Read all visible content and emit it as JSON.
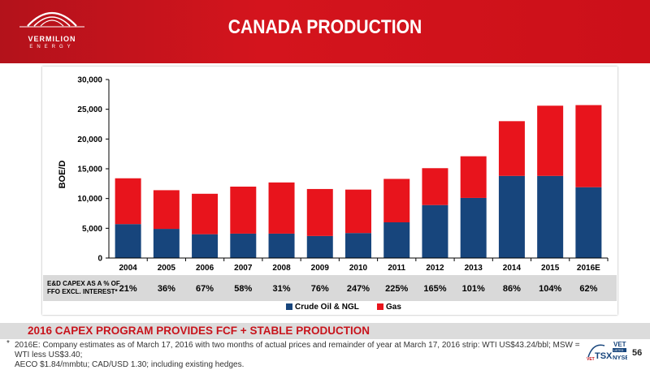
{
  "header": {
    "logo_name": "VERMILION",
    "logo_sub": "ENERGY",
    "title": "CANADA PRODUCTION"
  },
  "chart_data": {
    "type": "bar",
    "stacked": true,
    "categories": [
      "2004",
      "2005",
      "2006",
      "2007",
      "2008",
      "2009",
      "2010",
      "2011",
      "2012",
      "2013",
      "2014",
      "2015",
      "2016E"
    ],
    "series": [
      {
        "name": "Crude Oil & NGL",
        "color": "#17457c",
        "values": [
          5700,
          4900,
          4000,
          4100,
          4100,
          3700,
          4200,
          6000,
          8900,
          10100,
          13800,
          13800,
          11900
        ]
      },
      {
        "name": "Gas",
        "color": "#e8141c",
        "values": [
          7700,
          6500,
          6800,
          7900,
          8600,
          7900,
          7300,
          7300,
          6200,
          7000,
          9200,
          11800,
          13800
        ]
      }
    ],
    "ylabel": "BOE/D",
    "ylim": [
      0,
      30000
    ],
    "yticks": [
      "0",
      "5,000",
      "10,000",
      "15,000",
      "20,000",
      "25,000",
      "30,000"
    ],
    "ytick_values": [
      0,
      5000,
      10000,
      15000,
      20000,
      25000,
      30000
    ],
    "legend_position": "bottom",
    "grid": false
  },
  "capex": {
    "label_line1": "E&D CAPEX AS A % OF",
    "label_line2": "FFO  EXCL. INTEREST*",
    "values": [
      "21%",
      "36%",
      "67%",
      "58%",
      "31%",
      "76%",
      "247%",
      "225%",
      "165%",
      "101%",
      "86%",
      "104%",
      "62%"
    ]
  },
  "footer": {
    "title": "2016 CAPEX PROGRAM PROVIDES FCF + STABLE PRODUCTION",
    "footnote_star": "*",
    "footnote_line1": "2016E: Company estimates as of March 17, 2016 with two months of actual prices and remainder of year at March 17, 2016 strip: WTI US$43.24/bbl; MSW = WTI less US$3.40;",
    "footnote_line2": "AECO $1.84/mmbtu;  CAD/USD 1.30; including existing hedges.",
    "ticker_vet": "VET",
    "ticker_tsx": "TSX",
    "ticker_listed": "LISTED",
    "ticker_nyse": "NYSE",
    "page_number": "56"
  }
}
